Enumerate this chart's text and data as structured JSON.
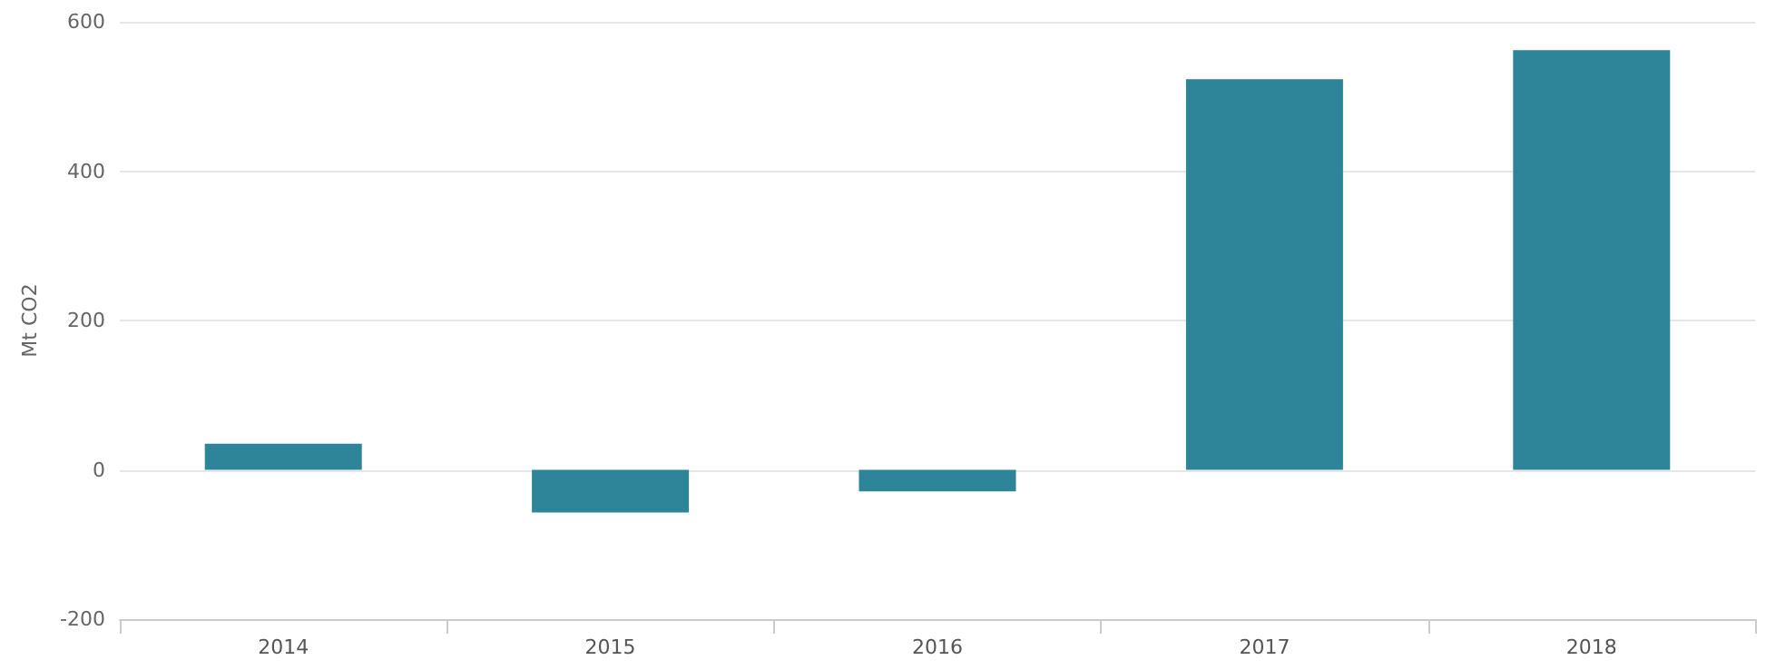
{
  "chart_data": {
    "type": "bar",
    "ylabel": "Mt CO2",
    "categories": [
      "2014",
      "2015",
      "2016",
      "2017",
      "2018"
    ],
    "values": [
      35,
      -57,
      -29,
      523,
      562
    ],
    "color": "#2e8599",
    "ylim": [
      -200,
      600
    ],
    "yticks": [
      -200,
      0,
      200,
      400,
      600
    ],
    "grid": "y"
  }
}
